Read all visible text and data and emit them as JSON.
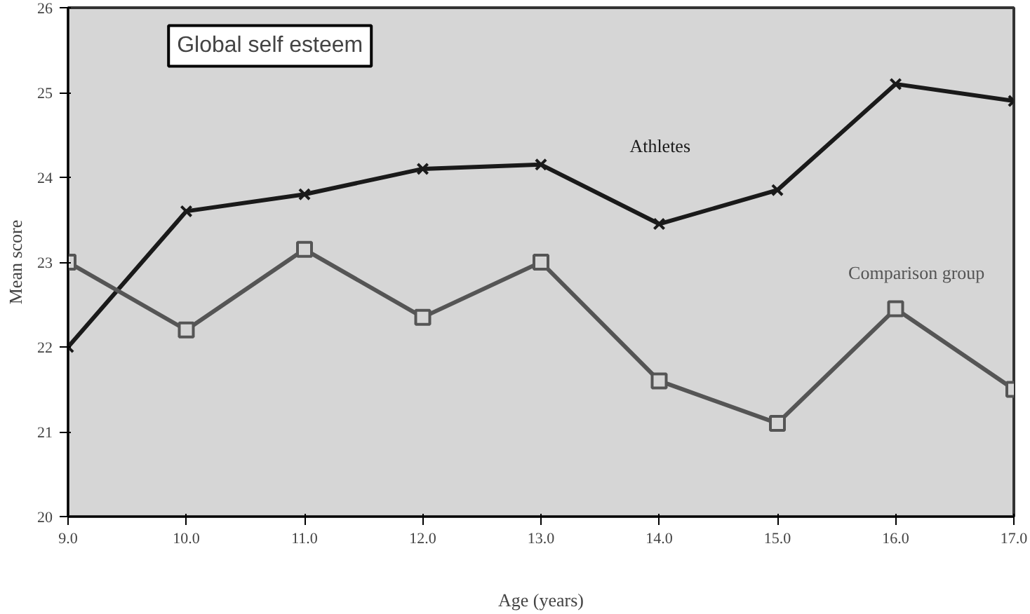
{
  "chart_data": {
    "type": "line",
    "title": "Global self esteem",
    "xlabel": "Age (years)",
    "ylabel": "Mean score",
    "x": [
      9,
      10,
      11,
      12,
      13,
      14,
      15,
      16,
      17
    ],
    "xlim": [
      9,
      17
    ],
    "xticks": [
      {
        "value": 9,
        "label": "9.0"
      },
      {
        "value": 10,
        "label": "10.0"
      },
      {
        "value": 11,
        "label": "11.0"
      },
      {
        "value": 12,
        "label": "12.0"
      },
      {
        "value": 13,
        "label": "13.0"
      },
      {
        "value": 14,
        "label": "14.0"
      },
      {
        "value": 15,
        "label": "15.0"
      },
      {
        "value": 16,
        "label": "16.0"
      },
      {
        "value": 17,
        "label": "17.0"
      }
    ],
    "ylim": [
      20,
      26
    ],
    "yticks": [
      20,
      21,
      22,
      23,
      24,
      25,
      26
    ],
    "grid": false,
    "series": [
      {
        "name": "Athletes",
        "color": "#1a1a1a",
        "marker": "cross",
        "values": [
          22.0,
          23.6,
          23.8,
          24.1,
          24.15,
          23.45,
          23.85,
          25.1,
          24.9
        ]
      },
      {
        "name": "Comparison group",
        "color": "#555555",
        "marker": "square",
        "values": [
          23.0,
          22.2,
          23.15,
          22.35,
          23.0,
          21.6,
          21.1,
          22.45,
          21.5
        ]
      }
    ]
  }
}
